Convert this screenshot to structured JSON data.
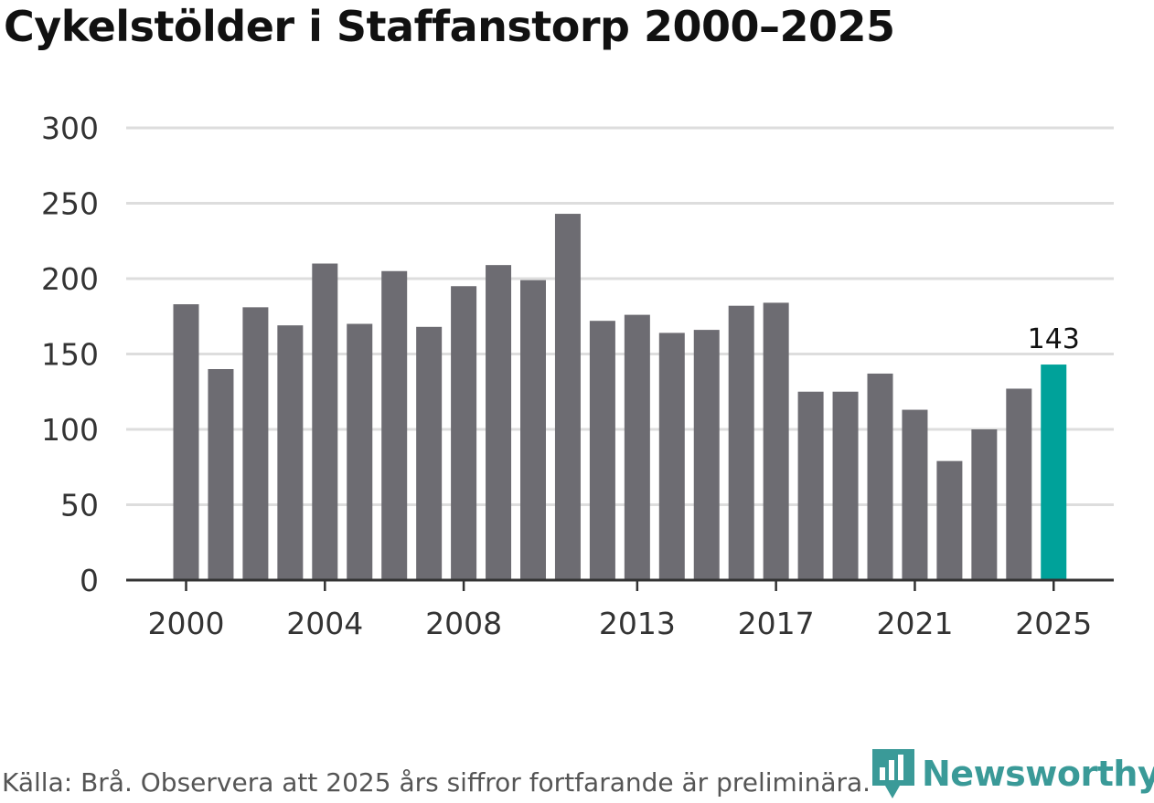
{
  "title": "Cykelstölder i Staffanstorp 2000–2025",
  "source": "Källa: Brå. Observera att 2025 års siffror fortfarande är preliminära.",
  "logo": {
    "text": "Newsworthy",
    "icon": "newsworthy-chart-bubble-icon"
  },
  "colors": {
    "bar": "#6d6c72",
    "highlight": "#00a29a",
    "grid": "#dddddd",
    "axis": "#333333",
    "brand": "#3a9a98"
  },
  "chart_data": {
    "type": "bar",
    "title": "Cykelstölder i Staffanstorp 2000–2025",
    "xlabel": "",
    "ylabel": "",
    "categories": [
      2000,
      2001,
      2002,
      2003,
      2004,
      2005,
      2006,
      2007,
      2008,
      2009,
      2010,
      2011,
      2012,
      2013,
      2014,
      2015,
      2016,
      2017,
      2018,
      2019,
      2020,
      2021,
      2022,
      2023,
      2024,
      2025
    ],
    "values": [
      183,
      140,
      181,
      169,
      210,
      170,
      205,
      168,
      195,
      209,
      199,
      243,
      172,
      176,
      164,
      166,
      182,
      184,
      125,
      125,
      137,
      113,
      79,
      100,
      127,
      143
    ],
    "highlight_category": 2025,
    "highlight_label": "143",
    "ylim": [
      0,
      300
    ],
    "yticks": [
      0,
      50,
      100,
      150,
      200,
      250,
      300
    ],
    "xtick_labels": [
      2000,
      2004,
      2008,
      2013,
      2017,
      2021,
      2025
    ],
    "grid": true
  }
}
